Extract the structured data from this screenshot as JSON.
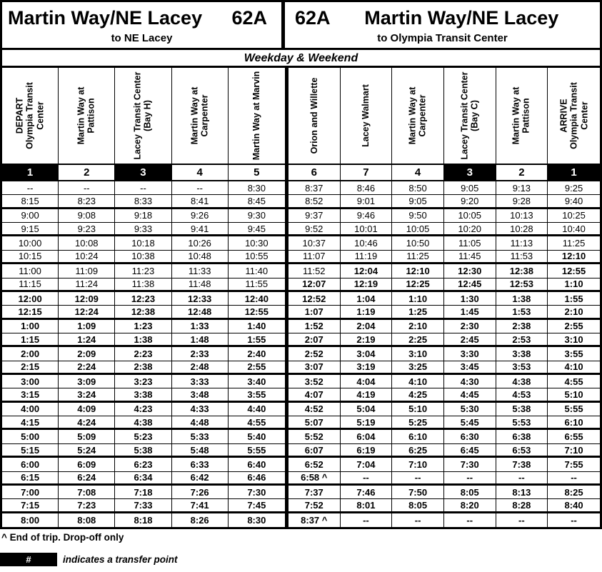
{
  "header": {
    "left": {
      "title": "Martin Way/NE Lacey",
      "route": "62A",
      "subtitle": "to NE Lacey"
    },
    "right": {
      "route": "62A",
      "title": "Martin Way/NE Lacey",
      "subtitle": "to Olympia Transit Center"
    }
  },
  "service_banner": "Weekday & Weekend",
  "schedule": {
    "stops": [
      {
        "name": "DEPART\nOlympia Transit\nCenter",
        "number": "1",
        "transfer_point": true
      },
      {
        "name": "Martin Way at\nPattison",
        "number": "2",
        "transfer_point": false
      },
      {
        "name": "Lacey Transit Center\n(Bay H)",
        "number": "3",
        "transfer_point": true
      },
      {
        "name": "Martin Way at\nCarpenter",
        "number": "4",
        "transfer_point": false
      },
      {
        "name": "Martin Way at Marvin",
        "number": "5",
        "transfer_point": false
      },
      {
        "name": "Orion and Willette",
        "number": "6",
        "transfer_point": false
      },
      {
        "name": "Lacey Walmart",
        "number": "7",
        "transfer_point": false
      },
      {
        "name": "Martin Way at\nCarpenter",
        "number": "4",
        "transfer_point": false
      },
      {
        "name": "Lacey Transit Center\n(Bay C)",
        "number": "3",
        "transfer_point": true
      },
      {
        "name": "Martin Way at\nPattison",
        "number": "2",
        "transfer_point": false
      },
      {
        "name": "ARRIVE\nOlympia Transit\nCenter",
        "number": "1",
        "transfer_point": true
      }
    ],
    "rows": [
      {
        "cells": [
          "--",
          "--",
          "--",
          "--",
          "8:30",
          "8:37",
          "8:46",
          "8:50",
          "9:05",
          "9:13",
          "9:25"
        ],
        "bold_from": 99
      },
      {
        "cells": [
          "8:15",
          "8:23",
          "8:33",
          "8:41",
          "8:45",
          "8:52",
          "9:01",
          "9:05",
          "9:20",
          "9:28",
          "9:40"
        ],
        "bold_from": 99
      },
      {
        "cells": [
          "9:00",
          "9:08",
          "9:18",
          "9:26",
          "9:30",
          "9:37",
          "9:46",
          "9:50",
          "10:05",
          "10:13",
          "10:25"
        ],
        "bold_from": 99
      },
      {
        "cells": [
          "9:15",
          "9:23",
          "9:33",
          "9:41",
          "9:45",
          "9:52",
          "10:01",
          "10:05",
          "10:20",
          "10:28",
          "10:40"
        ],
        "bold_from": 99
      },
      {
        "cells": [
          "10:00",
          "10:08",
          "10:18",
          "10:26",
          "10:30",
          "10:37",
          "10:46",
          "10:50",
          "11:05",
          "11:13",
          "11:25"
        ],
        "bold_from": 99
      },
      {
        "cells": [
          "10:15",
          "10:24",
          "10:38",
          "10:48",
          "10:55",
          "11:07",
          "11:19",
          "11:25",
          "11:45",
          "11:53",
          "12:10"
        ],
        "bold_from": 10
      },
      {
        "cells": [
          "11:00",
          "11:09",
          "11:23",
          "11:33",
          "11:40",
          "11:52",
          "12:04",
          "12:10",
          "12:30",
          "12:38",
          "12:55"
        ],
        "bold_from": 6
      },
      {
        "cells": [
          "11:15",
          "11:24",
          "11:38",
          "11:48",
          "11:55",
          "12:07",
          "12:19",
          "12:25",
          "12:45",
          "12:53",
          "1:10"
        ],
        "bold_from": 5
      },
      {
        "cells": [
          "12:00",
          "12:09",
          "12:23",
          "12:33",
          "12:40",
          "12:52",
          "1:04",
          "1:10",
          "1:30",
          "1:38",
          "1:55"
        ],
        "bold_from": 0
      },
      {
        "cells": [
          "12:15",
          "12:24",
          "12:38",
          "12:48",
          "12:55",
          "1:07",
          "1:19",
          "1:25",
          "1:45",
          "1:53",
          "2:10"
        ],
        "bold_from": 0
      },
      {
        "cells": [
          "1:00",
          "1:09",
          "1:23",
          "1:33",
          "1:40",
          "1:52",
          "2:04",
          "2:10",
          "2:30",
          "2:38",
          "2:55"
        ],
        "bold_from": 0
      },
      {
        "cells": [
          "1:15",
          "1:24",
          "1:38",
          "1:48",
          "1:55",
          "2:07",
          "2:19",
          "2:25",
          "2:45",
          "2:53",
          "3:10"
        ],
        "bold_from": 0
      },
      {
        "cells": [
          "2:00",
          "2:09",
          "2:23",
          "2:33",
          "2:40",
          "2:52",
          "3:04",
          "3:10",
          "3:30",
          "3:38",
          "3:55"
        ],
        "bold_from": 0
      },
      {
        "cells": [
          "2:15",
          "2:24",
          "2:38",
          "2:48",
          "2:55",
          "3:07",
          "3:19",
          "3:25",
          "3:45",
          "3:53",
          "4:10"
        ],
        "bold_from": 0
      },
      {
        "cells": [
          "3:00",
          "3:09",
          "3:23",
          "3:33",
          "3:40",
          "3:52",
          "4:04",
          "4:10",
          "4:30",
          "4:38",
          "4:55"
        ],
        "bold_from": 0
      },
      {
        "cells": [
          "3:15",
          "3:24",
          "3:38",
          "3:48",
          "3:55",
          "4:07",
          "4:19",
          "4:25",
          "4:45",
          "4:53",
          "5:10"
        ],
        "bold_from": 0
      },
      {
        "cells": [
          "4:00",
          "4:09",
          "4:23",
          "4:33",
          "4:40",
          "4:52",
          "5:04",
          "5:10",
          "5:30",
          "5:38",
          "5:55"
        ],
        "bold_from": 0
      },
      {
        "cells": [
          "4:15",
          "4:24",
          "4:38",
          "4:48",
          "4:55",
          "5:07",
          "5:19",
          "5:25",
          "5:45",
          "5:53",
          "6:10"
        ],
        "bold_from": 0
      },
      {
        "cells": [
          "5:00",
          "5:09",
          "5:23",
          "5:33",
          "5:40",
          "5:52",
          "6:04",
          "6:10",
          "6:30",
          "6:38",
          "6:55"
        ],
        "bold_from": 0
      },
      {
        "cells": [
          "5:15",
          "5:24",
          "5:38",
          "5:48",
          "5:55",
          "6:07",
          "6:19",
          "6:25",
          "6:45",
          "6:53",
          "7:10"
        ],
        "bold_from": 0
      },
      {
        "cells": [
          "6:00",
          "6:09",
          "6:23",
          "6:33",
          "6:40",
          "6:52",
          "7:04",
          "7:10",
          "7:30",
          "7:38",
          "7:55"
        ],
        "bold_from": 0
      },
      {
        "cells": [
          "6:15",
          "6:24",
          "6:34",
          "6:42",
          "6:46",
          "6:58 ^",
          "--",
          "--",
          "--",
          "--",
          "--"
        ],
        "bold_from": 0
      },
      {
        "cells": [
          "7:00",
          "7:08",
          "7:18",
          "7:26",
          "7:30",
          "7:37",
          "7:46",
          "7:50",
          "8:05",
          "8:13",
          "8:25"
        ],
        "bold_from": 0
      },
      {
        "cells": [
          "7:15",
          "7:23",
          "7:33",
          "7:41",
          "7:45",
          "7:52",
          "8:01",
          "8:05",
          "8:20",
          "8:28",
          "8:40"
        ],
        "bold_from": 0
      },
      {
        "cells": [
          "8:00",
          "8:08",
          "8:18",
          "8:26",
          "8:30",
          "8:37 ^",
          "--",
          "--",
          "--",
          "--",
          "--"
        ],
        "bold_from": 0
      }
    ]
  },
  "footnotes": {
    "end_of_trip": "^ End of trip. Drop-off only",
    "legend_symbol": "#",
    "legend_text": "indicates a transfer point"
  },
  "colors": {
    "ink": "#000000",
    "paper": "#ffffff"
  }
}
